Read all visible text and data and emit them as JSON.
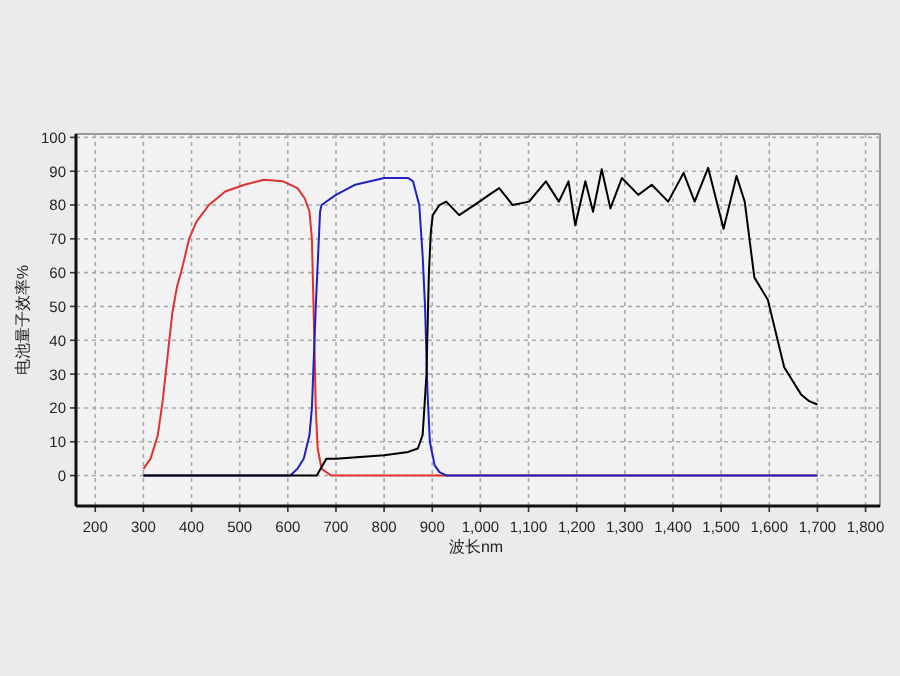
{
  "chart_data": {
    "type": "line",
    "xlabel": "波长nm",
    "ylabel": "电池量子效率%",
    "xlim": [
      160,
      1830
    ],
    "ylim": [
      -9,
      101
    ],
    "xticks": [
      200,
      300,
      400,
      500,
      600,
      700,
      800,
      900,
      {
        "value": 1000,
        "label": "1,000"
      },
      {
        "value": 1100,
        "label": "1,100"
      },
      {
        "value": 1200,
        "label": "1,200"
      },
      {
        "value": 1300,
        "label": "1,300"
      },
      {
        "value": 1400,
        "label": "1,400"
      },
      {
        "value": 1500,
        "label": "1,500"
      },
      {
        "value": 1600,
        "label": "1,600"
      },
      {
        "value": 1700,
        "label": "1,700"
      },
      {
        "value": 1800,
        "label": "1,800"
      }
    ],
    "yticks": [
      0,
      10,
      20,
      30,
      40,
      50,
      60,
      70,
      80,
      90,
      100
    ],
    "grid": true,
    "line_style": "solid",
    "series": [
      {
        "color": "#e03030",
        "x": [
          300,
          315,
          330,
          340,
          350,
          360,
          370,
          378,
          385,
          395,
          410,
          436,
          470,
          510,
          550,
          590,
          620,
          635,
          645,
          650,
          655,
          658,
          662,
          670,
          690,
          1000,
          1300,
          1700
        ],
        "values": [
          2,
          5,
          12,
          22,
          35,
          48,
          56,
          60,
          64,
          70,
          75,
          80,
          84,
          86,
          87.5,
          87,
          85,
          82,
          78,
          70,
          40,
          20,
          8,
          2,
          0,
          0,
          0,
          0
        ]
      },
      {
        "color": "#2020c0",
        "x": [
          300,
          500,
          605,
          620,
          633,
          645,
          650,
          658,
          667,
          670,
          700,
          740,
          800,
          850,
          860,
          873,
          880,
          885,
          890,
          895,
          905,
          915,
          930,
          1200,
          1500,
          1700
        ],
        "values": [
          0,
          0,
          0,
          2,
          5,
          12,
          20,
          50,
          78,
          80,
          83,
          86,
          88,
          88,
          87,
          80,
          65,
          50,
          25,
          10,
          3,
          1,
          0,
          0,
          0,
          0
        ]
      },
      {
        "color": "#000000",
        "x": [
          300,
          500,
          660,
          672,
          680,
          700,
          800,
          850,
          870,
          880,
          888,
          893,
          897,
          901,
          915,
          929,
          956,
          998,
          1018,
          1039,
          1067,
          1101,
          1136,
          1163,
          1183,
          1197,
          1218,
          1234,
          1252,
          1270,
          1294,
          1328,
          1356,
          1390,
          1422,
          1445,
          1473,
          1505,
          1532,
          1549,
          1569,
          1597,
          1631,
          1666,
          1683,
          1700
        ],
        "values": [
          0,
          0,
          0,
          3,
          5,
          5,
          6,
          7,
          8,
          12,
          30,
          60,
          72,
          77,
          80,
          81,
          77,
          81,
          83,
          85,
          80,
          81,
          87,
          81,
          87,
          74,
          87,
          78,
          90.6,
          79,
          88,
          83,
          86,
          81,
          89.5,
          81,
          91,
          73,
          88.6,
          81,
          58.6,
          52,
          32,
          24,
          22,
          21
        ]
      }
    ]
  }
}
